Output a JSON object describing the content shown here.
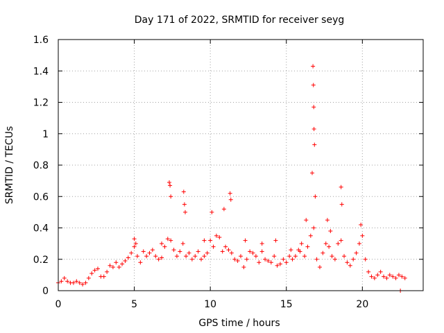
{
  "chart_data": {
    "type": "scatter",
    "title": "Day 171 of 2022, SRMTID for receiver seyg",
    "xlabel": "GPS time / hours",
    "ylabel": "SRMTID / TECUs",
    "xlim": [
      0,
      24
    ],
    "ylim": [
      0,
      1.6
    ],
    "xticks": [
      0,
      5,
      10,
      15,
      20
    ],
    "xtick_labels": [
      "0",
      "5",
      "10",
      "15",
      "20"
    ],
    "yticks": [
      0,
      0.2,
      0.4,
      0.6,
      0.8,
      1.0,
      1.2,
      1.4,
      1.6
    ],
    "ytick_labels": [
      "0",
      "0.2",
      "0.4",
      "0.6",
      "0.8",
      "1",
      "1.2",
      "1.4",
      "1.6"
    ],
    "grid": true,
    "marker": "plus",
    "series": [
      {
        "name": "SRMTID",
        "color": "#ff0000",
        "x": [
          0.0,
          0.2,
          0.4,
          0.6,
          0.8,
          1.0,
          1.2,
          1.4,
          1.6,
          1.8,
          2.0,
          2.2,
          2.4,
          2.6,
          2.8,
          3.0,
          3.2,
          3.4,
          3.6,
          3.8,
          4.0,
          4.2,
          4.4,
          4.6,
          4.8,
          5.0,
          5.2,
          5.4,
          5.6,
          5.8,
          6.0,
          6.2,
          6.4,
          6.6,
          6.8,
          7.0,
          7.2,
          7.4,
          7.6,
          7.8,
          8.0,
          8.2,
          8.4,
          8.6,
          8.8,
          9.0,
          9.2,
          9.4,
          9.6,
          9.8,
          10.0,
          10.2,
          10.4,
          10.6,
          10.8,
          11.0,
          11.2,
          11.4,
          11.6,
          11.8,
          12.0,
          12.2,
          12.4,
          12.6,
          12.8,
          13.0,
          13.2,
          13.4,
          13.6,
          13.8,
          14.0,
          14.2,
          14.4,
          14.6,
          14.8,
          15.0,
          15.2,
          15.4,
          15.6,
          15.8,
          16.0,
          16.2,
          16.4,
          16.6,
          16.8,
          17.0,
          17.2,
          17.4,
          17.6,
          17.8,
          18.0,
          18.2,
          18.4,
          18.6,
          18.8,
          19.0,
          19.2,
          19.4,
          19.6,
          19.8,
          20.0,
          20.2,
          20.4,
          20.6,
          20.8,
          21.0,
          21.2,
          21.4,
          21.6,
          21.8,
          22.0,
          22.2,
          22.4,
          22.6,
          22.8,
          7.3,
          7.35,
          7.4,
          8.25,
          8.3,
          8.35,
          11.3,
          11.35,
          10.9,
          10.1,
          16.75,
          16.78,
          16.8,
          16.82,
          16.85,
          16.7,
          16.9,
          18.6,
          18.65,
          16.3,
          19.9,
          17.7,
          17.9,
          6.8,
          9.6,
          5.0,
          5.1,
          12.3,
          13.4,
          14.3,
          15.3,
          15.9,
          22.5
        ],
        "y": [
          0.05,
          0.06,
          0.08,
          0.06,
          0.05,
          0.05,
          0.06,
          0.05,
          0.04,
          0.05,
          0.08,
          0.11,
          0.13,
          0.14,
          0.09,
          0.09,
          0.12,
          0.16,
          0.15,
          0.18,
          0.15,
          0.17,
          0.19,
          0.21,
          0.24,
          0.28,
          0.22,
          0.18,
          0.25,
          0.22,
          0.24,
          0.26,
          0.22,
          0.2,
          0.21,
          0.28,
          0.33,
          0.32,
          0.26,
          0.22,
          0.25,
          0.3,
          0.22,
          0.24,
          0.2,
          0.22,
          0.25,
          0.2,
          0.22,
          0.24,
          0.32,
          0.28,
          0.35,
          0.34,
          0.25,
          0.28,
          0.26,
          0.24,
          0.2,
          0.19,
          0.22,
          0.15,
          0.2,
          0.25,
          0.24,
          0.22,
          0.18,
          0.25,
          0.2,
          0.19,
          0.18,
          0.22,
          0.16,
          0.17,
          0.2,
          0.18,
          0.22,
          0.2,
          0.22,
          0.26,
          0.3,
          0.22,
          0.28,
          0.35,
          0.4,
          0.2,
          0.15,
          0.24,
          0.3,
          0.28,
          0.22,
          0.2,
          0.3,
          0.32,
          0.22,
          0.18,
          0.16,
          0.2,
          0.24,
          0.3,
          0.35,
          0.2,
          0.12,
          0.09,
          0.08,
          0.1,
          0.12,
          0.09,
          0.08,
          0.1,
          0.09,
          0.08,
          0.1,
          0.09,
          0.08,
          0.69,
          0.67,
          0.6,
          0.63,
          0.55,
          0.5,
          0.62,
          0.58,
          0.52,
          0.5,
          1.43,
          1.31,
          1.17,
          1.03,
          0.93,
          0.75,
          0.6,
          0.66,
          0.55,
          0.45,
          0.42,
          0.45,
          0.38,
          0.3,
          0.32,
          0.33,
          0.3,
          0.32,
          0.3,
          0.32,
          0.26,
          0.25,
          0.0
        ]
      }
    ]
  }
}
